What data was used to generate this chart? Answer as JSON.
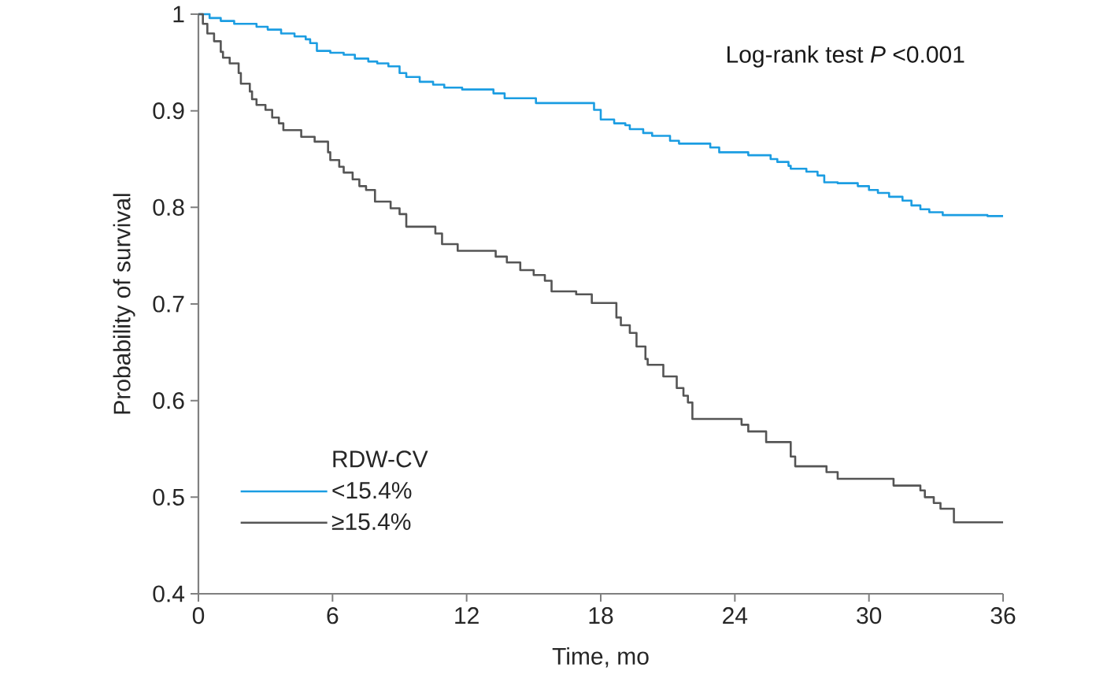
{
  "chart_data": {
    "type": "step",
    "xlabel": "Time, mo",
    "ylabel": "Probability of survival",
    "legend_title": "RDW-CV",
    "annotations": [
      "Log-rank test *P* <0.001"
    ],
    "xlim": [
      0,
      36
    ],
    "xticks": [
      0,
      6,
      12,
      18,
      24,
      30,
      36
    ],
    "ylim": [
      0.4,
      1
    ],
    "yticks": [
      0.4,
      0.5,
      0.6,
      0.7,
      0.8,
      0.9,
      1
    ],
    "legend": "bottom left",
    "series": [
      {
        "name": "<15.4%",
        "color": "#1b9de2",
        "x": [
          0,
          0.5,
          1.0,
          1.6,
          2.6,
          3.1,
          3.7,
          4.3,
          4.8,
          5.0,
          5.3,
          5.9,
          6.5,
          7.0,
          7.6,
          8.0,
          8.5,
          9.0,
          9.3,
          9.9,
          10.5,
          11.0,
          11.8,
          13.2,
          13.7,
          15.1,
          17.7,
          18.0,
          18.6,
          19.1,
          19.3,
          19.9,
          20.3,
          21.1,
          21.5,
          22.9,
          23.3,
          24.6,
          25.6,
          25.9,
          26.4,
          26.5,
          27.2,
          27.7,
          28.0,
          28.6,
          29.5,
          30.0,
          30.4,
          30.9,
          31.5,
          31.9,
          32.3,
          32.7,
          33.3,
          35.3,
          36
        ],
        "values": [
          1.0,
          0.996,
          0.993,
          0.99,
          0.987,
          0.984,
          0.98,
          0.977,
          0.974,
          0.97,
          0.962,
          0.96,
          0.958,
          0.954,
          0.951,
          0.949,
          0.946,
          0.939,
          0.935,
          0.93,
          0.927,
          0.924,
          0.922,
          0.918,
          0.913,
          0.908,
          0.901,
          0.891,
          0.887,
          0.885,
          0.881,
          0.877,
          0.874,
          0.869,
          0.866,
          0.862,
          0.857,
          0.854,
          0.85,
          0.847,
          0.843,
          0.84,
          0.837,
          0.833,
          0.826,
          0.825,
          0.822,
          0.818,
          0.815,
          0.811,
          0.807,
          0.802,
          0.798,
          0.795,
          0.792,
          0.791,
          0.791
        ]
      },
      {
        "name": "≥15.4%",
        "color": "#555555",
        "x": [
          0,
          0.2,
          0.4,
          0.7,
          1.0,
          1.1,
          1.4,
          1.8,
          1.9,
          2.3,
          2.4,
          2.6,
          3.0,
          3.3,
          3.6,
          3.8,
          4.6,
          5.2,
          5.8,
          5.9,
          6.3,
          6.5,
          6.9,
          7.2,
          7.5,
          7.9,
          8.6,
          9.0,
          9.3,
          10.6,
          10.9,
          11.6,
          13.3,
          13.8,
          14.4,
          15.0,
          15.5,
          15.8,
          16.9,
          17.6,
          18.7,
          18.9,
          19.3,
          19.6,
          20.0,
          20.1,
          20.8,
          21.4,
          21.7,
          21.9,
          22.1,
          24.3,
          24.6,
          25.4,
          26.5,
          26.7,
          28.1,
          28.6,
          31.1,
          32.3,
          32.5,
          32.9,
          33.2,
          33.8,
          36
        ],
        "values": [
          1.0,
          0.99,
          0.98,
          0.972,
          0.961,
          0.955,
          0.949,
          0.939,
          0.928,
          0.92,
          0.912,
          0.906,
          0.901,
          0.893,
          0.887,
          0.88,
          0.873,
          0.868,
          0.857,
          0.849,
          0.842,
          0.836,
          0.829,
          0.822,
          0.818,
          0.806,
          0.799,
          0.793,
          0.78,
          0.773,
          0.762,
          0.755,
          0.749,
          0.743,
          0.735,
          0.73,
          0.724,
          0.713,
          0.71,
          0.701,
          0.686,
          0.678,
          0.67,
          0.656,
          0.643,
          0.637,
          0.625,
          0.613,
          0.605,
          0.598,
          0.581,
          0.575,
          0.568,
          0.557,
          0.542,
          0.532,
          0.526,
          0.519,
          0.512,
          0.507,
          0.5,
          0.494,
          0.488,
          0.474,
          0.474
        ]
      }
    ]
  }
}
